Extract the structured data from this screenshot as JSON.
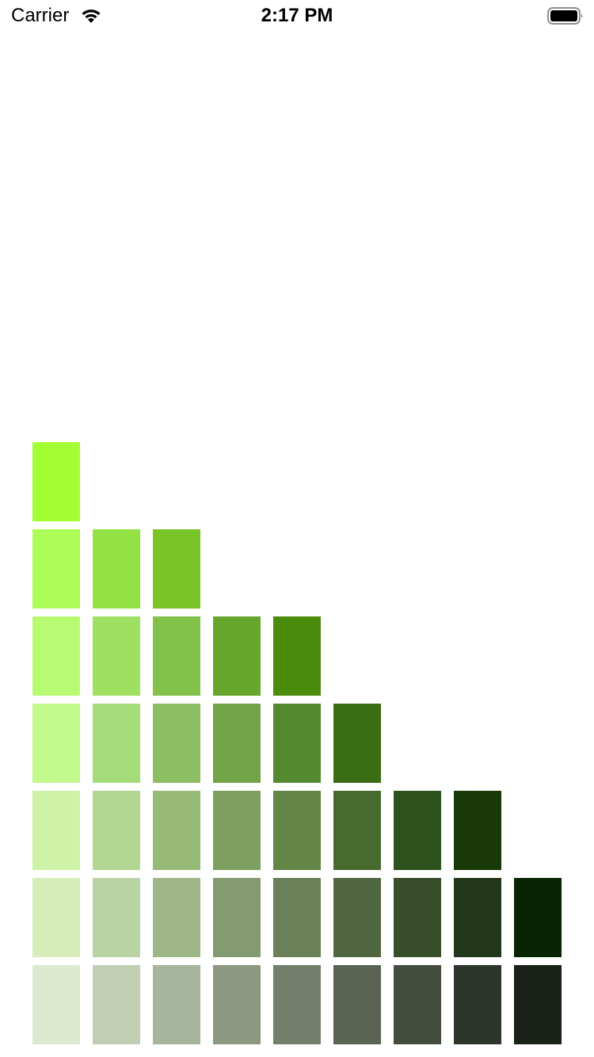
{
  "status_bar": {
    "carrier": "Carrier",
    "time": "2:17 PM",
    "wifi_icon": "wifi-icon",
    "battery_icon": "battery-icon"
  },
  "palette": {
    "rows": [
      [
        "#A3FF33"
      ],
      [
        "#ACFD56",
        "#93E142",
        "#78C429"
      ],
      [
        "#B8FB72",
        "#9FDF62",
        "#83C24A",
        "#68A72E",
        "#4C8C0C"
      ],
      [
        "#C3F88D",
        "#A6DB7A",
        "#8EBE62",
        "#72A346",
        "#558930",
        "#3B6E14"
      ],
      [
        "#CEF2A7",
        "#B1D792",
        "#98BA77",
        "#7D9F5F",
        "#638545",
        "#476A2F",
        "#2D521C",
        "#193909"
      ],
      [
        "#D6EDBA",
        "#B9D3A4",
        "#9FB788",
        "#849B71",
        "#6A8059",
        "#506640",
        "#384D2A",
        "#22361A",
        "#092402"
      ],
      [
        "#DDE9CF",
        "#C1CEB3",
        "#A7B59D",
        "#8D9881",
        "#747F6B",
        "#5B6453",
        "#444C3E",
        "#2E352B",
        "#1A2118"
      ]
    ]
  }
}
